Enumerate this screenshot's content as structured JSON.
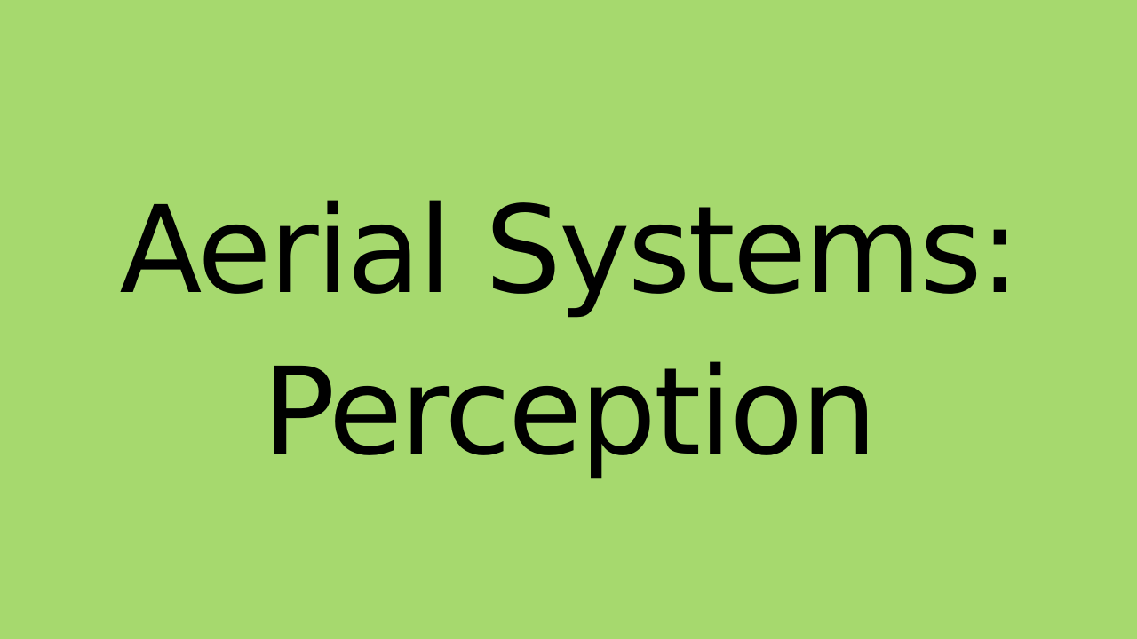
{
  "slide": {
    "title_line_1": "Aerial Systems:",
    "title_line_2": "Perception",
    "background_color": "#a6d96e",
    "text_color": "#000000"
  }
}
